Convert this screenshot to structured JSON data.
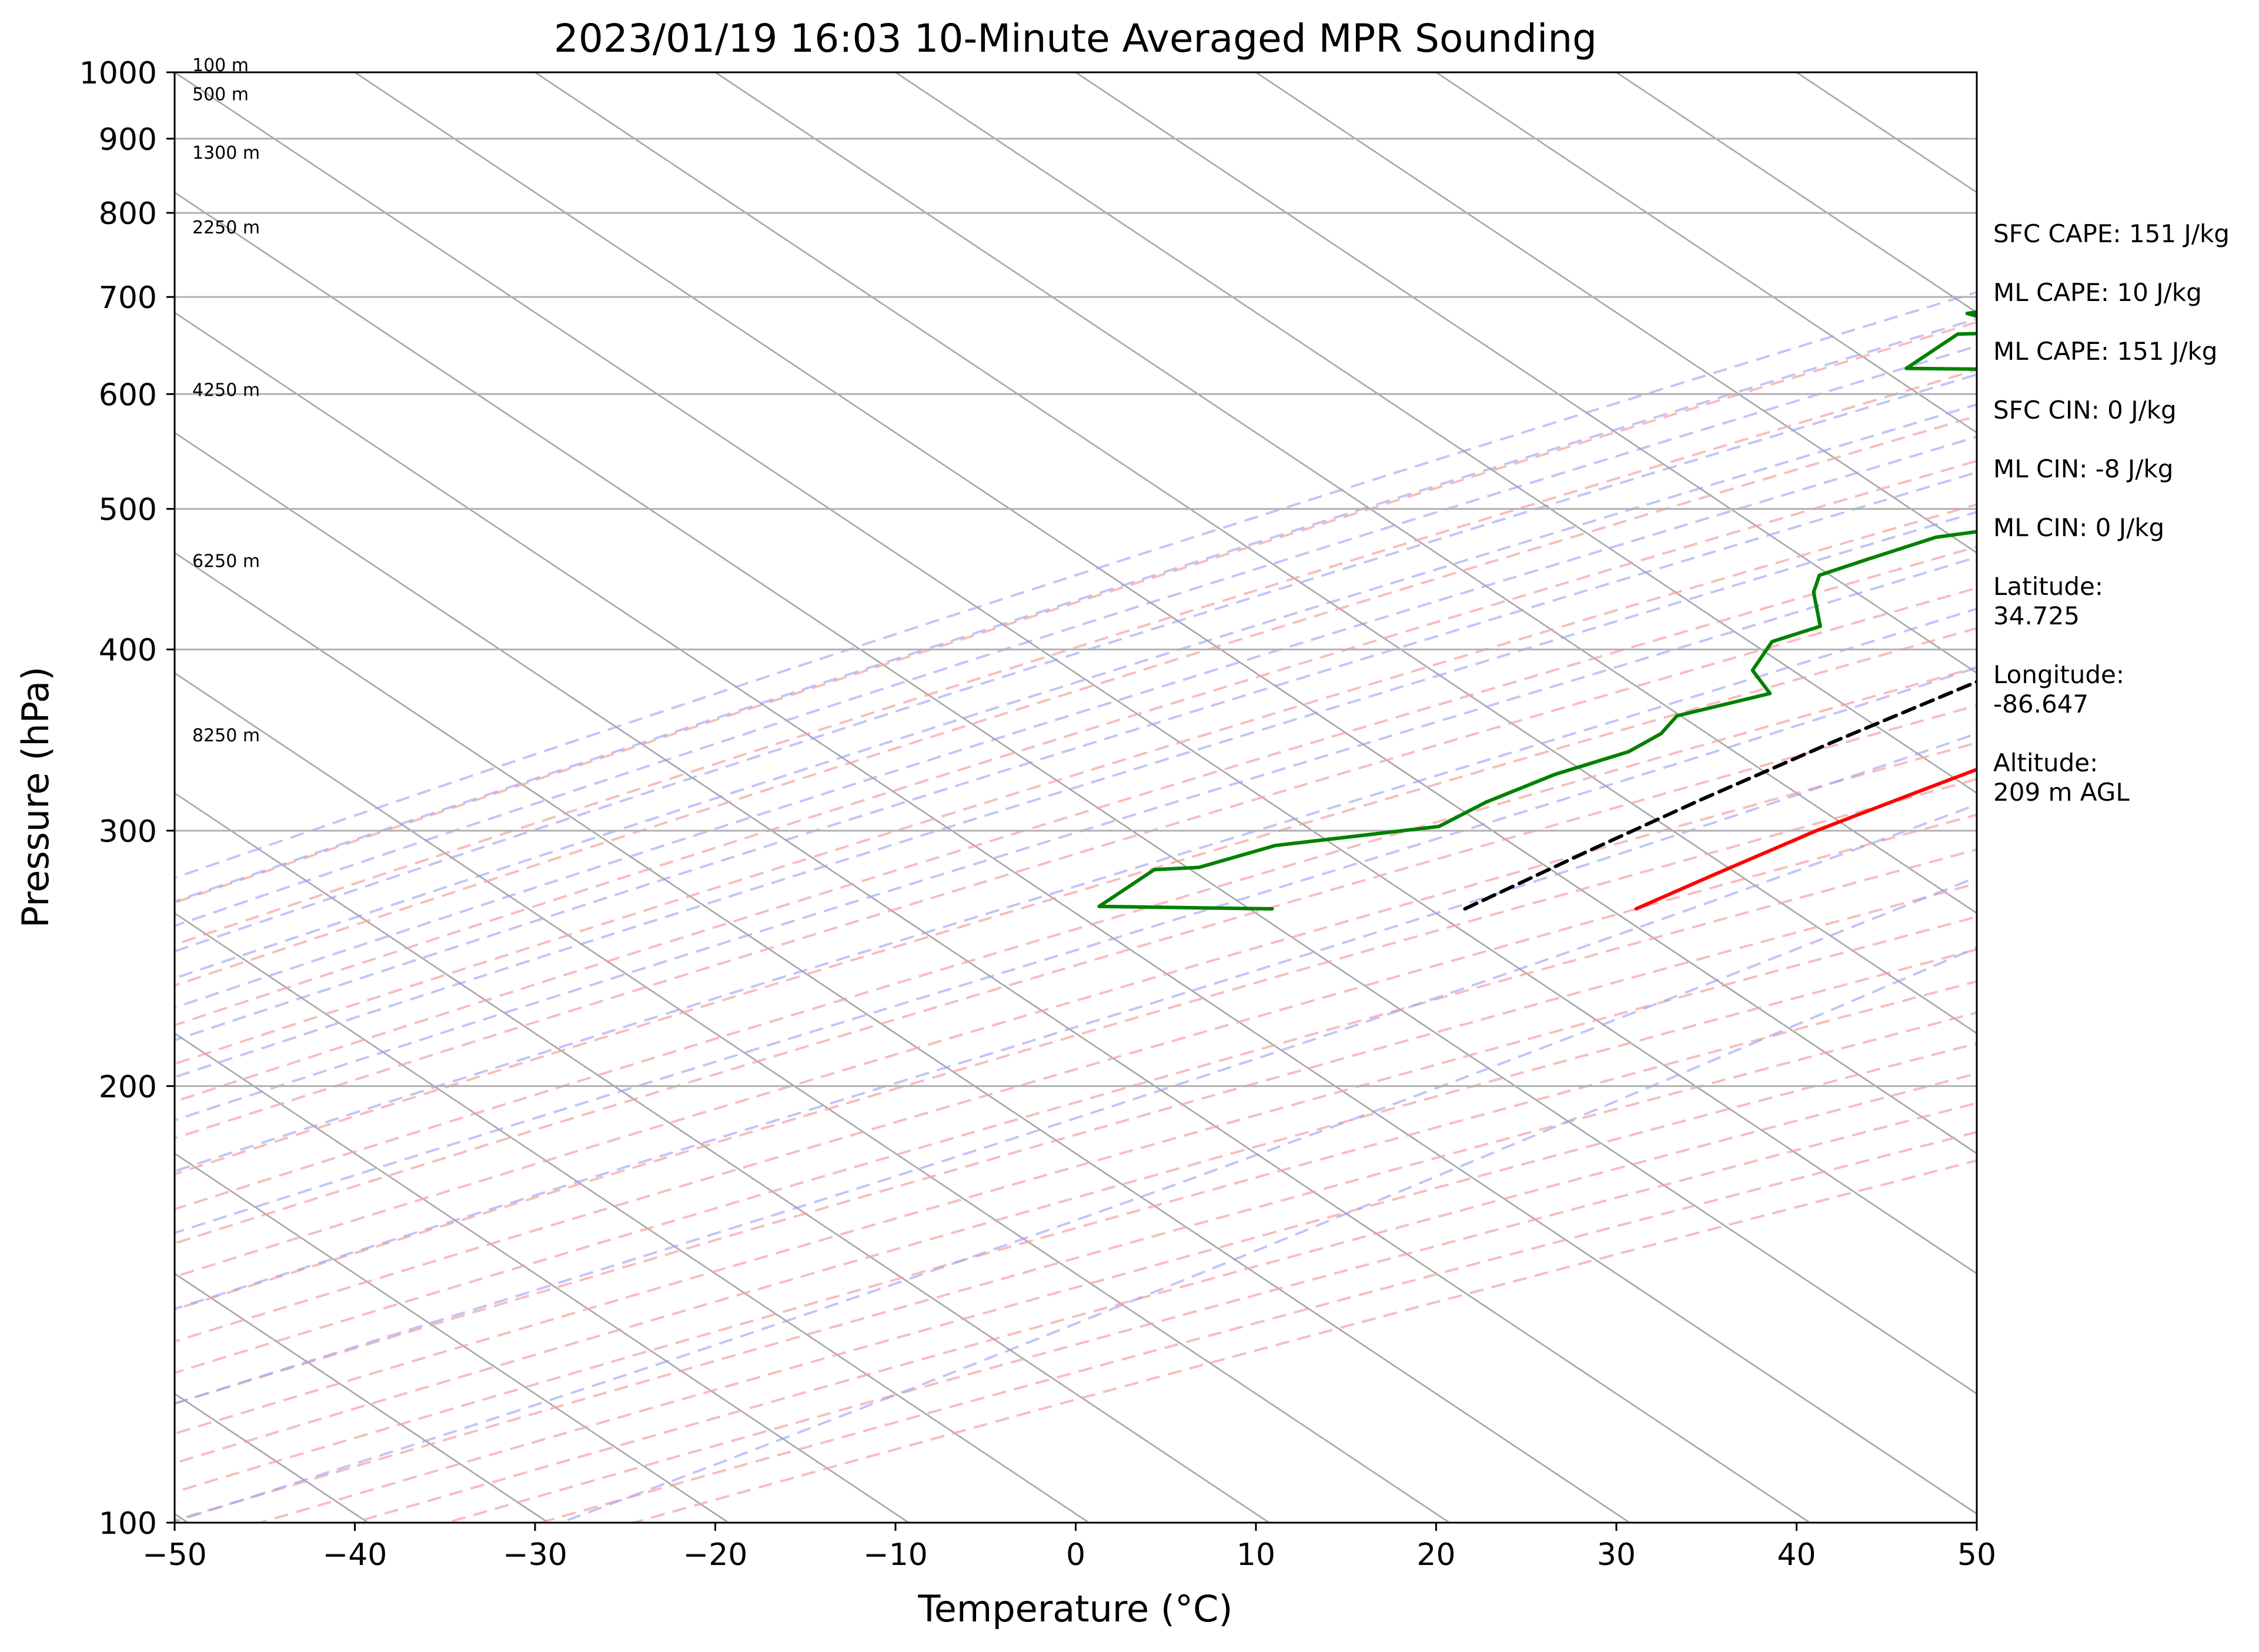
{
  "chart_data": {
    "type": "line",
    "title": "2023/01/19 16:03 10-Minute Averaged MPR Sounding",
    "xlabel": "Temperature (°C)",
    "ylabel": "Pressure (hPa)",
    "xlim": [
      -50,
      50
    ],
    "ylim": [
      1000,
      100
    ],
    "y_scale": "log",
    "grid": true,
    "x_ticks": [
      -50,
      -40,
      -30,
      -20,
      -10,
      0,
      10,
      20,
      30,
      40,
      50
    ],
    "y_ticks": [
      100,
      200,
      300,
      400,
      500,
      600,
      700,
      800,
      900,
      1000
    ],
    "series": [
      {
        "color": "#ff0000",
        "points": [
          [
            -20.0,
            265
          ],
          [
            -18.5,
            280
          ],
          [
            -16.5,
            300
          ],
          [
            -14,
            320
          ],
          [
            -11,
            345
          ],
          [
            -7.5,
            375
          ],
          [
            -4,
            405
          ],
          [
            -0.8,
            435
          ],
          [
            2.5,
            467
          ],
          [
            5.5,
            500
          ],
          [
            8.3,
            535
          ],
          [
            10.8,
            570
          ],
          [
            12.7,
            600
          ],
          [
            14.6,
            637
          ],
          [
            15.6,
            670
          ],
          [
            16.2,
            700
          ],
          [
            16.7,
            740
          ],
          [
            17.3,
            780
          ],
          [
            17.6,
            815
          ],
          [
            18.4,
            850
          ],
          [
            19.6,
            885
          ],
          [
            21.6,
            915
          ],
          [
            24.1,
            940
          ],
          [
            25.6,
            960
          ],
          [
            26.0,
            980
          ],
          [
            26.4,
            988
          ]
        ]
      },
      {
        "color": "#008000",
        "points": [
          [
            -40.2,
            265
          ],
          [
            -50.0,
            266
          ],
          [
            -50.0,
            282
          ],
          [
            -47.7,
            283
          ],
          [
            -45.3,
            293
          ],
          [
            -37.8,
            302
          ],
          [
            -37.2,
            314
          ],
          [
            -35.7,
            328
          ],
          [
            -33.5,
            340
          ],
          [
            -33.2,
            350
          ],
          [
            -33.8,
            360
          ],
          [
            -30.5,
            373
          ],
          [
            -33.4,
            387
          ],
          [
            -34.7,
            405
          ],
          [
            -33.3,
            415
          ],
          [
            -36.5,
            438
          ],
          [
            -37.6,
            450
          ],
          [
            -36.2,
            462
          ],
          [
            -34.3,
            478
          ],
          [
            -27.2,
            495
          ],
          [
            -26.5,
            512
          ],
          [
            -29.3,
            530
          ],
          [
            -27.2,
            545
          ],
          [
            -31.0,
            567
          ],
          [
            -40.0,
            588
          ],
          [
            -38.5,
            595
          ],
          [
            -36.6,
            605
          ],
          [
            -35.4,
            615
          ],
          [
            -34.2,
            622
          ],
          [
            -50.0,
            625
          ],
          [
            -50.0,
            660
          ],
          [
            -46.0,
            662
          ],
          [
            -51.2,
            682
          ],
          [
            -49.0,
            690
          ],
          [
            -44.5,
            695
          ],
          [
            -40.0,
            699
          ],
          [
            -36.0,
            704
          ],
          [
            -33.8,
            710
          ],
          [
            -31.5,
            718
          ],
          [
            -29.6,
            724
          ],
          [
            -29.2,
            728
          ],
          [
            -28.1,
            752
          ],
          [
            -24.3,
            770
          ],
          [
            -20.3,
            786
          ],
          [
            -16.9,
            800
          ],
          [
            -12.8,
            812
          ],
          [
            -9.7,
            823
          ],
          [
            -8.6,
            836
          ],
          [
            -5.9,
            852
          ],
          [
            -1.6,
            870
          ],
          [
            0.4,
            880
          ],
          [
            3.0,
            893
          ],
          [
            3.8,
            902
          ],
          [
            4.4,
            918
          ],
          [
            5.0,
            932
          ],
          [
            5.4,
            946
          ],
          [
            5.5,
            956
          ],
          [
            6.0,
            968
          ],
          [
            6.5,
            975
          ],
          [
            9.2,
            985
          ]
        ]
      },
      {
        "color": "#000000",
        "dashed": true,
        "points": [
          [
            -29.5,
            265
          ],
          [
            -27.5,
            290
          ],
          [
            -25.5,
            315
          ],
          [
            -23,
            345
          ],
          [
            -20,
            380
          ],
          [
            -17,
            415
          ],
          [
            -13.5,
            460
          ],
          [
            -10.5,
            500
          ],
          [
            -7.8,
            540
          ],
          [
            -5.6,
            570
          ],
          [
            -3.3,
            600
          ],
          [
            -1.0,
            630
          ],
          [
            0.5,
            650
          ],
          [
            1.5,
            670
          ],
          [
            3.0,
            700
          ],
          [
            4.3,
            730
          ],
          [
            5.8,
            765
          ],
          [
            7.3,
            800
          ],
          [
            8.8,
            840
          ],
          [
            10.0,
            870
          ],
          [
            11.5,
            898
          ],
          [
            14.5,
            930
          ],
          [
            17.5,
            965
          ],
          [
            18.7,
            990
          ]
        ]
      }
    ],
    "altitude_labels": [
      {
        "text": "8250 m",
        "p": 345
      },
      {
        "text": "6250 m",
        "p": 455
      },
      {
        "text": "4250 m",
        "p": 597
      },
      {
        "text": "2250 m",
        "p": 773
      },
      {
        "text": "1300 m",
        "p": 870
      },
      {
        "text": "500 m",
        "p": 955
      },
      {
        "text": "100 m",
        "p": 1000
      }
    ],
    "annotations": [
      "SFC CAPE: 151 J/kg",
      "ML CAPE: 10 J/kg",
      "ML CAPE: 151 J/kg",
      "SFC CIN: 0 J/kg",
      "ML CIN: -8 J/kg",
      "ML CIN: 0 J/kg",
      [
        "Latitude:",
        "34.725"
      ],
      [
        "Longitude:",
        "-86.647"
      ],
      [
        "Altitude:",
        "209 m AGL"
      ]
    ]
  }
}
